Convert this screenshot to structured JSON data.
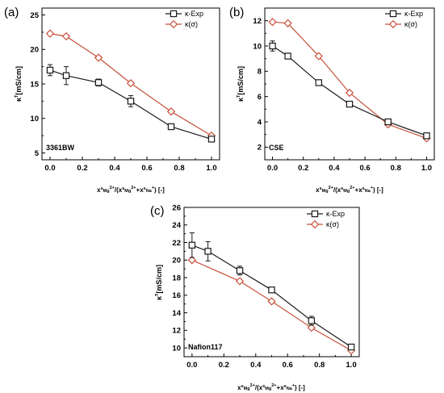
{
  "colors": {
    "exp": "#1a1a1a",
    "model": "#c8503a",
    "axis": "#000000"
  },
  "chart_data": [
    {
      "panel_label": "(a)",
      "type": "line",
      "xlabel": "x^s_Mg2+/(x^s_Mg2+ + x^s_Na+) [-]",
      "ylabel": "κ^T [mS/cm]",
      "annotation": "3361BW",
      "xlim": [
        -0.05,
        1.05
      ],
      "ylim": [
        4,
        26
      ],
      "xticks": [
        0.0,
        0.2,
        0.4,
        0.6,
        0.8,
        1.0
      ],
      "yticks": [
        5,
        10,
        15,
        20,
        25
      ],
      "legend_position": "top-right",
      "series": [
        {
          "name": "κ-Exp",
          "marker": "square",
          "x": [
            0,
            0.1,
            0.3,
            0.5,
            0.75,
            1.0
          ],
          "y": [
            17.0,
            16.2,
            15.2,
            12.5,
            8.8,
            7.0
          ],
          "err": [
            0.8,
            1.3,
            0.5,
            0.8,
            0.3,
            0.3
          ]
        },
        {
          "name": "κ(σ)",
          "marker": "diamond",
          "x": [
            0,
            0.1,
            0.3,
            0.5,
            0.75,
            1.0
          ],
          "y": [
            22.3,
            21.9,
            18.8,
            15.1,
            11.0,
            7.5
          ]
        }
      ]
    },
    {
      "panel_label": "(b)",
      "type": "line",
      "xlabel": "x^s_Mg2+/(x^s_Mg2+ + x^s_Na+) [-]",
      "ylabel": "κ^T [mS/cm]",
      "annotation": "CSE",
      "xlim": [
        -0.05,
        1.05
      ],
      "ylim": [
        1,
        13
      ],
      "xticks": [
        0.0,
        0.2,
        0.4,
        0.6,
        0.8,
        1.0
      ],
      "yticks": [
        2,
        4,
        6,
        8,
        10,
        12
      ],
      "legend_position": "top-right",
      "series": [
        {
          "name": "κ-Exp",
          "marker": "square",
          "x": [
            0,
            0.1,
            0.3,
            0.5,
            0.75,
            1.0
          ],
          "y": [
            10.0,
            9.2,
            7.1,
            5.4,
            4.0,
            2.9
          ],
          "err": [
            0.4,
            0.15,
            0.2,
            0.1,
            0.15,
            0.15
          ]
        },
        {
          "name": "κ(σ)",
          "marker": "diamond",
          "x": [
            0,
            0.1,
            0.3,
            0.5,
            0.75,
            1.0
          ],
          "y": [
            11.9,
            11.8,
            9.2,
            6.3,
            3.8,
            2.7
          ]
        }
      ]
    },
    {
      "panel_label": "(c)",
      "type": "line",
      "xlabel": "x^s_Mg2+/(x^s_Mg2+ + x^s_Na+) [-]",
      "ylabel": "κ^T [mS/cm]",
      "annotation": "Nafion117",
      "xlim": [
        -0.05,
        1.05
      ],
      "ylim": [
        9,
        26
      ],
      "xticks": [
        0.0,
        0.2,
        0.4,
        0.6,
        0.8,
        1.0
      ],
      "yticks": [
        10,
        12,
        14,
        16,
        18,
        20,
        22,
        24,
        26
      ],
      "legend_position": "top-right",
      "series": [
        {
          "name": "κ-Exp",
          "marker": "square",
          "x": [
            0,
            0.1,
            0.3,
            0.5,
            0.75,
            1.0
          ],
          "y": [
            21.7,
            21.0,
            18.8,
            16.6,
            13.1,
            10.1
          ],
          "err": [
            1.4,
            1.1,
            0.5,
            0.3,
            0.5,
            0.2
          ]
        },
        {
          "name": "κ(σ)",
          "marker": "diamond",
          "x": [
            0,
            0.3,
            0.5,
            0.75,
            1.0
          ],
          "y": [
            20.0,
            17.6,
            15.3,
            12.3,
            9.7
          ]
        }
      ]
    }
  ]
}
